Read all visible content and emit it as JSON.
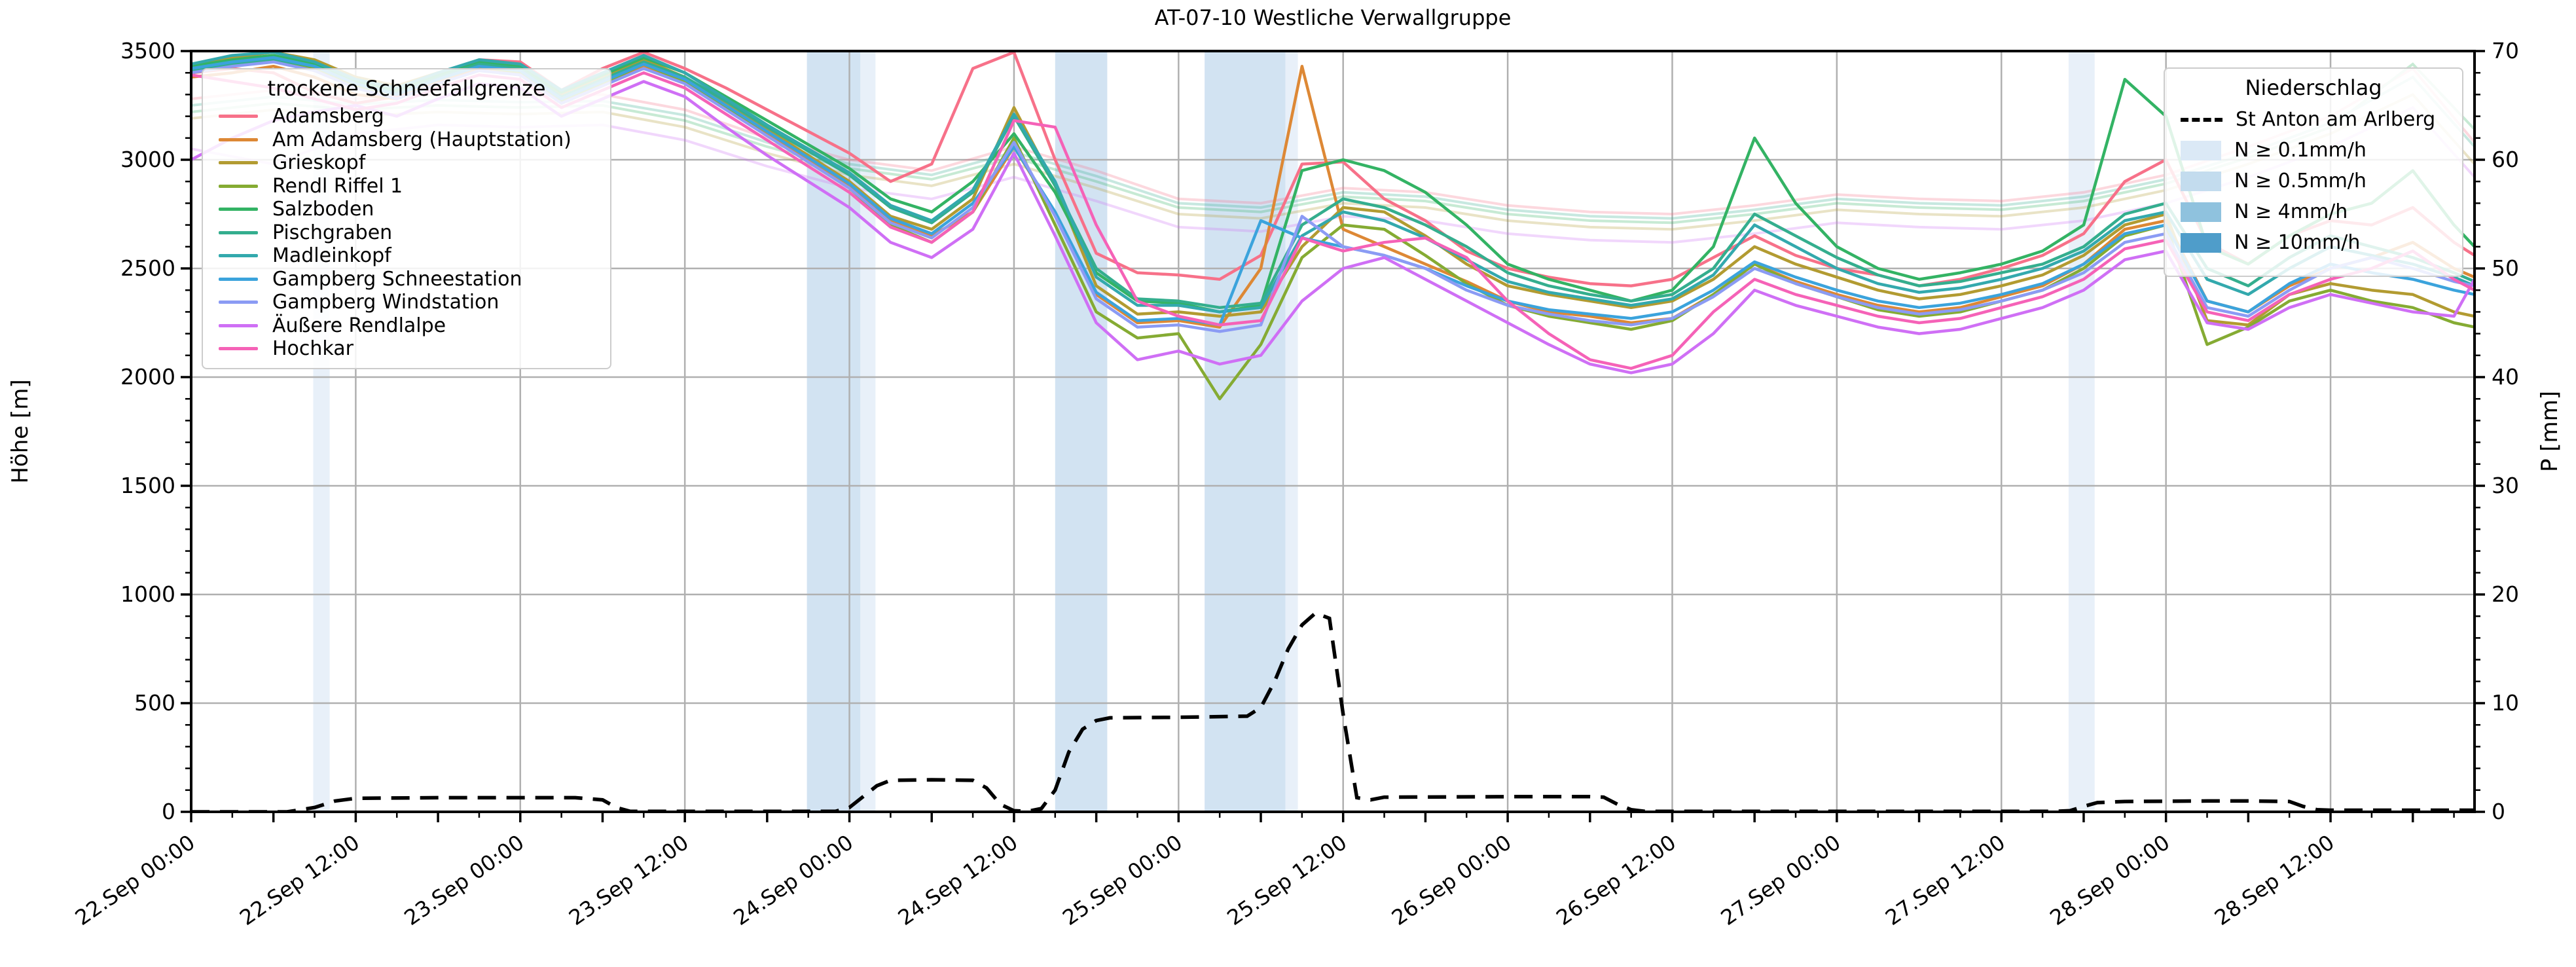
{
  "chart": {
    "title": "AT-07-10 Westliche Verwallgruppe",
    "left_axis": {
      "label": "Höhe [m]",
      "tick_labels": [
        "0",
        "500",
        "1000",
        "1500",
        "2000",
        "2500",
        "3000",
        "3500"
      ]
    },
    "right_axis": {
      "label": "P [mm]",
      "tick_labels": [
        "0",
        "10",
        "20",
        "30",
        "40",
        "50",
        "60",
        "70"
      ]
    },
    "x_axis": {
      "tick_labels": [
        "22.Sep 00:00",
        "22.Sep 12:00",
        "23.Sep 00:00",
        "23.Sep 12:00",
        "24.Sep 00:00",
        "24.Sep 12:00",
        "25.Sep 00:00",
        "25.Sep 12:00",
        "26.Sep 00:00",
        "26.Sep 12:00",
        "27.Sep 00:00",
        "27.Sep 12:00",
        "28.Sep 00:00",
        "28.Sep 12:00"
      ]
    },
    "legend_stations": {
      "title": "trockene Schneefallgrenze"
    },
    "legend_precip": {
      "title": "Niederschlag",
      "line_entry": "St Anton am Arlberg",
      "band_entries": [
        {
          "label": "N ≥ 0.1mm/h",
          "color": "#dbe9f6"
        },
        {
          "label": "N ≥ 0.5mm/h",
          "color": "#c3dcee"
        },
        {
          "label": "N ≥ 4mm/h",
          "color": "#8fc2de"
        },
        {
          "label": "N ≥ 10mm/h",
          "color": "#4f9dca"
        }
      ]
    },
    "colors": {
      "grid": "#b0b0b0",
      "spine": "#000000",
      "band_01": "#e8f0f9",
      "band_05": "#d2e3f2"
    }
  },
  "chart_data": {
    "type": "line",
    "title": "AT-07-10 Westliche Verwallgruppe",
    "xlabel": "",
    "ylabel_left": "Höhe [m]",
    "ylabel_right": "P [mm]",
    "ylim_left": [
      0,
      3500
    ],
    "ylim_right": [
      0,
      70
    ],
    "x_start": "22.Sep 00:00",
    "x_end_hours": 166.5,
    "x_tick_every_hours": 12,
    "grid": true,
    "time_step_h": 3,
    "series": [
      {
        "name": "Adamsberg",
        "color": "#f77189",
        "values": [
          3400,
          3420,
          3400,
          3310,
          3260,
          3290,
          3390,
          3460,
          3450,
          3320,
          3420,
          3495,
          3420,
          3330,
          3230,
          3130,
          3030,
          2900,
          2980,
          3420,
          3495,
          3000,
          2570,
          2480,
          2470,
          2450,
          2560,
          2980,
          2990,
          2820,
          2720,
          2580,
          2500,
          2460,
          2430,
          2420,
          2450,
          2550,
          2650,
          2560,
          2500,
          2470,
          2420,
          2450,
          2500,
          2560,
          2660,
          2900,
          3000,
          2620,
          2520,
          2650,
          2720,
          2700,
          2780,
          2620,
          2560
        ]
      },
      {
        "name": "Am Adamsberg (Hauptstation)",
        "color": "#dd8835",
        "values": [
          3380,
          3400,
          3430,
          3380,
          3300,
          3280,
          3360,
          3420,
          3400,
          3260,
          3340,
          3430,
          3360,
          3240,
          3120,
          3000,
          2880,
          2720,
          2650,
          2760,
          3060,
          2750,
          2380,
          2250,
          2260,
          2230,
          2500,
          3430,
          2680,
          2600,
          2520,
          2440,
          2350,
          2300,
          2280,
          2250,
          2270,
          2380,
          2520,
          2440,
          2380,
          2330,
          2300,
          2320,
          2370,
          2420,
          2520,
          2680,
          2720,
          2350,
          2300,
          2420,
          2500,
          2550,
          2620,
          2500,
          2460
        ]
      },
      {
        "name": "Grieskopf",
        "color": "#b29b31",
        "values": [
          3430,
          3470,
          3495,
          3460,
          3380,
          3340,
          3400,
          3450,
          3420,
          3300,
          3380,
          3460,
          3380,
          3260,
          3140,
          3020,
          2900,
          2740,
          2680,
          2820,
          3240,
          2880,
          2420,
          2290,
          2300,
          2280,
          2300,
          2600,
          2780,
          2760,
          2650,
          2520,
          2420,
          2380,
          2350,
          2320,
          2350,
          2450,
          2600,
          2520,
          2460,
          2400,
          2360,
          2380,
          2420,
          2470,
          2560,
          2700,
          2750,
          2260,
          2240,
          2380,
          2430,
          2400,
          2380,
          2300,
          2280
        ]
      },
      {
        "name": "Rendl Riffel 1",
        "color": "#85ab33",
        "values": [
          3400,
          3430,
          3460,
          3420,
          3340,
          3300,
          3370,
          3430,
          3400,
          3270,
          3350,
          3440,
          3360,
          3240,
          3110,
          2990,
          2870,
          2700,
          2620,
          2760,
          3100,
          2700,
          2300,
          2180,
          2200,
          1900,
          2150,
          2550,
          2700,
          2680,
          2560,
          2430,
          2330,
          2280,
          2250,
          2220,
          2260,
          2380,
          2520,
          2430,
          2370,
          2310,
          2280,
          2300,
          2350,
          2400,
          2500,
          2650,
          2700,
          2150,
          2230,
          2350,
          2400,
          2350,
          2320,
          2250,
          2230
        ]
      },
      {
        "name": "Salzboden",
        "color": "#33b364",
        "values": [
          3430,
          3460,
          3480,
          3440,
          3360,
          3320,
          3390,
          3450,
          3430,
          3310,
          3390,
          3470,
          3400,
          3290,
          3180,
          3070,
          2960,
          2820,
          2760,
          2900,
          3120,
          2850,
          2480,
          2350,
          2340,
          2300,
          2330,
          2950,
          3000,
          2950,
          2850,
          2700,
          2520,
          2450,
          2400,
          2350,
          2400,
          2600,
          3100,
          2800,
          2600,
          2500,
          2450,
          2480,
          2520,
          2580,
          2700,
          3370,
          3200,
          2600,
          2520,
          2650,
          2750,
          2800,
          2950,
          2700,
          2600
        ]
      },
      {
        "name": "Pischgraben",
        "color": "#34ae8e",
        "values": [
          3410,
          3440,
          3460,
          3430,
          3350,
          3310,
          3380,
          3440,
          3420,
          3290,
          3370,
          3450,
          3380,
          3270,
          3150,
          3040,
          2930,
          2780,
          2710,
          2850,
          3200,
          2880,
          2500,
          2360,
          2350,
          2320,
          2340,
          2700,
          2820,
          2780,
          2700,
          2600,
          2480,
          2420,
          2380,
          2350,
          2380,
          2500,
          2750,
          2650,
          2550,
          2470,
          2420,
          2440,
          2480,
          2520,
          2600,
          2750,
          2800,
          2500,
          2420,
          2550,
          2650,
          2600,
          2550,
          2480,
          2440
        ]
      },
      {
        "name": "Madleinkopf",
        "color": "#33a9ad",
        "values": [
          3440,
          3480,
          3495,
          3450,
          3370,
          3330,
          3400,
          3460,
          3440,
          3320,
          3400,
          3480,
          3400,
          3280,
          3160,
          3050,
          2940,
          2790,
          2720,
          2860,
          3210,
          2900,
          2460,
          2330,
          2330,
          2300,
          2320,
          2650,
          2760,
          2720,
          2640,
          2540,
          2440,
          2390,
          2360,
          2330,
          2360,
          2470,
          2700,
          2600,
          2500,
          2430,
          2390,
          2410,
          2450,
          2500,
          2580,
          2720,
          2760,
          2450,
          2380,
          2500,
          2600,
          2560,
          2520,
          2460,
          2420
        ]
      },
      {
        "name": "Gampberg Schneestation",
        "color": "#3ba3dc",
        "values": [
          3420,
          3450,
          3470,
          3430,
          3350,
          3300,
          3370,
          3430,
          3410,
          3280,
          3360,
          3440,
          3370,
          3250,
          3130,
          3010,
          2890,
          2730,
          2660,
          2800,
          3060,
          2760,
          2390,
          2260,
          2270,
          2240,
          2720,
          2640,
          2600,
          2560,
          2500,
          2420,
          2350,
          2310,
          2290,
          2270,
          2300,
          2400,
          2530,
          2460,
          2400,
          2350,
          2320,
          2340,
          2380,
          2430,
          2520,
          2660,
          2700,
          2350,
          2300,
          2430,
          2520,
          2480,
          2450,
          2400,
          2380
        ]
      },
      {
        "name": "Gampberg Windstation",
        "color": "#8b9bf4",
        "values": [
          3400,
          3430,
          3450,
          3410,
          3330,
          3280,
          3350,
          3410,
          3390,
          3260,
          3340,
          3420,
          3350,
          3230,
          3110,
          2990,
          2870,
          2710,
          2640,
          2780,
          3080,
          2740,
          2360,
          2230,
          2240,
          2210,
          2240,
          2740,
          2600,
          2560,
          2500,
          2400,
          2330,
          2290,
          2260,
          2240,
          2270,
          2370,
          2500,
          2430,
          2370,
          2320,
          2290,
          2310,
          2350,
          2400,
          2480,
          2620,
          2660,
          2320,
          2280,
          2400,
          2500,
          2550,
          2500,
          2440,
          2420
        ]
      },
      {
        "name": "Äußere Rendlalpe",
        "color": "#cf6ff5",
        "values": [
          3000,
          3100,
          3180,
          3220,
          3250,
          3200,
          3280,
          3350,
          3330,
          3200,
          3280,
          3360,
          3290,
          3150,
          3020,
          2900,
          2780,
          2620,
          2550,
          2680,
          3030,
          2650,
          2250,
          2080,
          2120,
          2060,
          2100,
          2350,
          2500,
          2550,
          2450,
          2350,
          2250,
          2150,
          2060,
          2020,
          2060,
          2200,
          2400,
          2330,
          2280,
          2230,
          2200,
          2220,
          2270,
          2320,
          2400,
          2540,
          2580,
          2250,
          2220,
          2320,
          2380,
          2340,
          2300,
          2280,
          2450
        ]
      },
      {
        "name": "Hochkar",
        "color": "#f562b7",
        "values": [
          3390,
          3360,
          3330,
          3280,
          3230,
          3260,
          3330,
          3390,
          3370,
          3240,
          3320,
          3400,
          3330,
          3210,
          3090,
          2970,
          2850,
          2690,
          2620,
          2760,
          3180,
          3150,
          2700,
          2350,
          2280,
          2240,
          2260,
          2640,
          2580,
          2620,
          2640,
          2550,
          2350,
          2200,
          2080,
          2040,
          2100,
          2300,
          2450,
          2380,
          2330,
          2280,
          2250,
          2270,
          2320,
          2370,
          2450,
          2590,
          2630,
          2300,
          2260,
          2380,
          2450,
          2500,
          2580,
          2450,
          2400
        ]
      }
    ],
    "pale_lines": {
      "time_step_h": 6,
      "opacity": 0.27,
      "lines": [
        {
          "color": "#f77189",
          "values": [
            3280,
            3320,
            3280,
            3300,
            3290,
            3300,
            3230,
            3100,
            3000,
            2950,
            3060,
            2950,
            2820,
            2800,
            2870,
            2850,
            2790,
            2760,
            2750,
            2790,
            2840,
            2820,
            2810,
            2850,
            2930,
            3060,
            3200,
            3420,
            3080
          ]
        },
        {
          "color": "#33b364",
          "values": [
            3220,
            3260,
            3230,
            3250,
            3240,
            3250,
            3180,
            3060,
            2960,
            2910,
            3010,
            2900,
            2780,
            2760,
            2830,
            2810,
            2750,
            2720,
            2710,
            2750,
            2800,
            2780,
            2770,
            2810,
            2890,
            3010,
            3150,
            3440,
            3140
          ]
        },
        {
          "color": "#34ae8e",
          "values": [
            3250,
            3290,
            3255,
            3275,
            3265,
            3270,
            3205,
            3080,
            2980,
            2930,
            3035,
            2925,
            2800,
            2780,
            2850,
            2830,
            2770,
            2740,
            2730,
            2770,
            2820,
            2800,
            2790,
            2830,
            2910,
            3030,
            3170,
            3380,
            3060
          ]
        },
        {
          "color": "#b29b31",
          "values": [
            3190,
            3230,
            3200,
            3220,
            3210,
            3220,
            3150,
            3030,
            2930,
            2880,
            2980,
            2870,
            2750,
            2730,
            2800,
            2780,
            2720,
            2690,
            2680,
            2720,
            2770,
            2750,
            2740,
            2780,
            2860,
            2980,
            3120,
            3300,
            2980
          ]
        },
        {
          "color": "#cf6ff5",
          "values": [
            3050,
            2980,
            3120,
            3160,
            3150,
            3160,
            3090,
            2970,
            2870,
            2820,
            2920,
            2810,
            2690,
            2670,
            2740,
            2720,
            2660,
            2630,
            2620,
            2660,
            2710,
            2690,
            2680,
            2720,
            2800,
            2920,
            3060,
            3240,
            2920
          ]
        }
      ]
    },
    "precip_line": {
      "name": "St Anton am Arlberg",
      "axis": "right",
      "unit": "mm",
      "points": [
        [
          0,
          0
        ],
        [
          7,
          0
        ],
        [
          9,
          0.4
        ],
        [
          10.5,
          1.0
        ],
        [
          12,
          1.25
        ],
        [
          18,
          1.3
        ],
        [
          24,
          1.3
        ],
        [
          28,
          1.3
        ],
        [
          30,
          1.1
        ],
        [
          31,
          0.4
        ],
        [
          32,
          0.05
        ],
        [
          40,
          0.05
        ],
        [
          47,
          0.05
        ],
        [
          48,
          0.4
        ],
        [
          50,
          2.4
        ],
        [
          51,
          2.9
        ],
        [
          54,
          2.95
        ],
        [
          57,
          2.9
        ],
        [
          58,
          2.2
        ],
        [
          59,
          0.7
        ],
        [
          60,
          0.1
        ],
        [
          61,
          0.05
        ],
        [
          62,
          0.3
        ],
        [
          63,
          2.0
        ],
        [
          64,
          5.5
        ],
        [
          65,
          7.6
        ],
        [
          66,
          8.4
        ],
        [
          67,
          8.65
        ],
        [
          72,
          8.7
        ],
        [
          77,
          8.8
        ],
        [
          78,
          9.6
        ],
        [
          79,
          12.0
        ],
        [
          80,
          15.0
        ],
        [
          81,
          17.2
        ],
        [
          82,
          18.3
        ],
        [
          83,
          17.8
        ],
        [
          84,
          9.0
        ],
        [
          85,
          1.3
        ],
        [
          86,
          1.1
        ],
        [
          87,
          1.35
        ],
        [
          96,
          1.4
        ],
        [
          102,
          1.4
        ],
        [
          103,
          1.35
        ],
        [
          104,
          0.7
        ],
        [
          105,
          0.2
        ],
        [
          106,
          0.05
        ],
        [
          120,
          0.05
        ],
        [
          136,
          0.05
        ],
        [
          137,
          0.1
        ],
        [
          138,
          0.5
        ],
        [
          139,
          0.85
        ],
        [
          141,
          0.95
        ],
        [
          147,
          1.0
        ],
        [
          150,
          1.0
        ],
        [
          153,
          0.95
        ],
        [
          154,
          0.5
        ],
        [
          155,
          0.2
        ],
        [
          156,
          0.15
        ],
        [
          166.5,
          0.15
        ]
      ]
    },
    "precip_bands": [
      {
        "from_h": 8.9,
        "to_h": 10.1,
        "level": "0.1"
      },
      {
        "from_h": 44.9,
        "to_h": 48.8,
        "level": "0.5"
      },
      {
        "from_h": 48.8,
        "to_h": 49.9,
        "level": "0.1"
      },
      {
        "from_h": 63.0,
        "to_h": 66.8,
        "level": "0.5"
      },
      {
        "from_h": 73.9,
        "to_h": 79.8,
        "level": "0.5"
      },
      {
        "from_h": 79.8,
        "to_h": 80.7,
        "level": "0.1"
      },
      {
        "from_h": 136.9,
        "to_h": 138.8,
        "level": "0.1"
      }
    ]
  }
}
